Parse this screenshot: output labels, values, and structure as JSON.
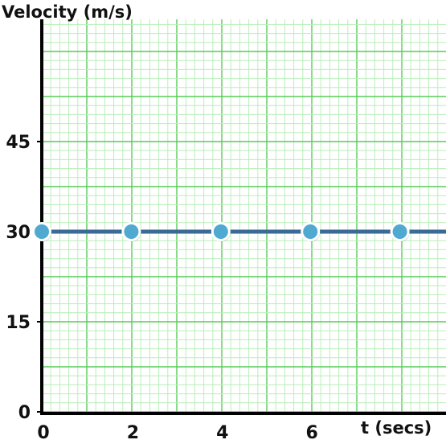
{
  "chart_data": {
    "type": "line",
    "ylabel": "Velocity (m/s)",
    "xlabel": "t (secs)",
    "x_ticks": [
      "0",
      "2",
      "4",
      "6"
    ],
    "y_ticks": [
      "0",
      "15",
      "30",
      "45"
    ],
    "xlim": [
      0,
      9
    ],
    "ylim": [
      0,
      65
    ],
    "grid": true,
    "series": [
      {
        "x": [
          0,
          2,
          4,
          6,
          8
        ],
        "y": [
          30,
          30,
          30,
          30,
          30
        ]
      }
    ],
    "colors": {
      "grid_minor": "#b9eeb9",
      "grid_major": "#57cc57",
      "axis": "#000000",
      "line": "#3a6a95",
      "marker": "#4fa9d1",
      "marker_edge": "#ffffff"
    }
  }
}
